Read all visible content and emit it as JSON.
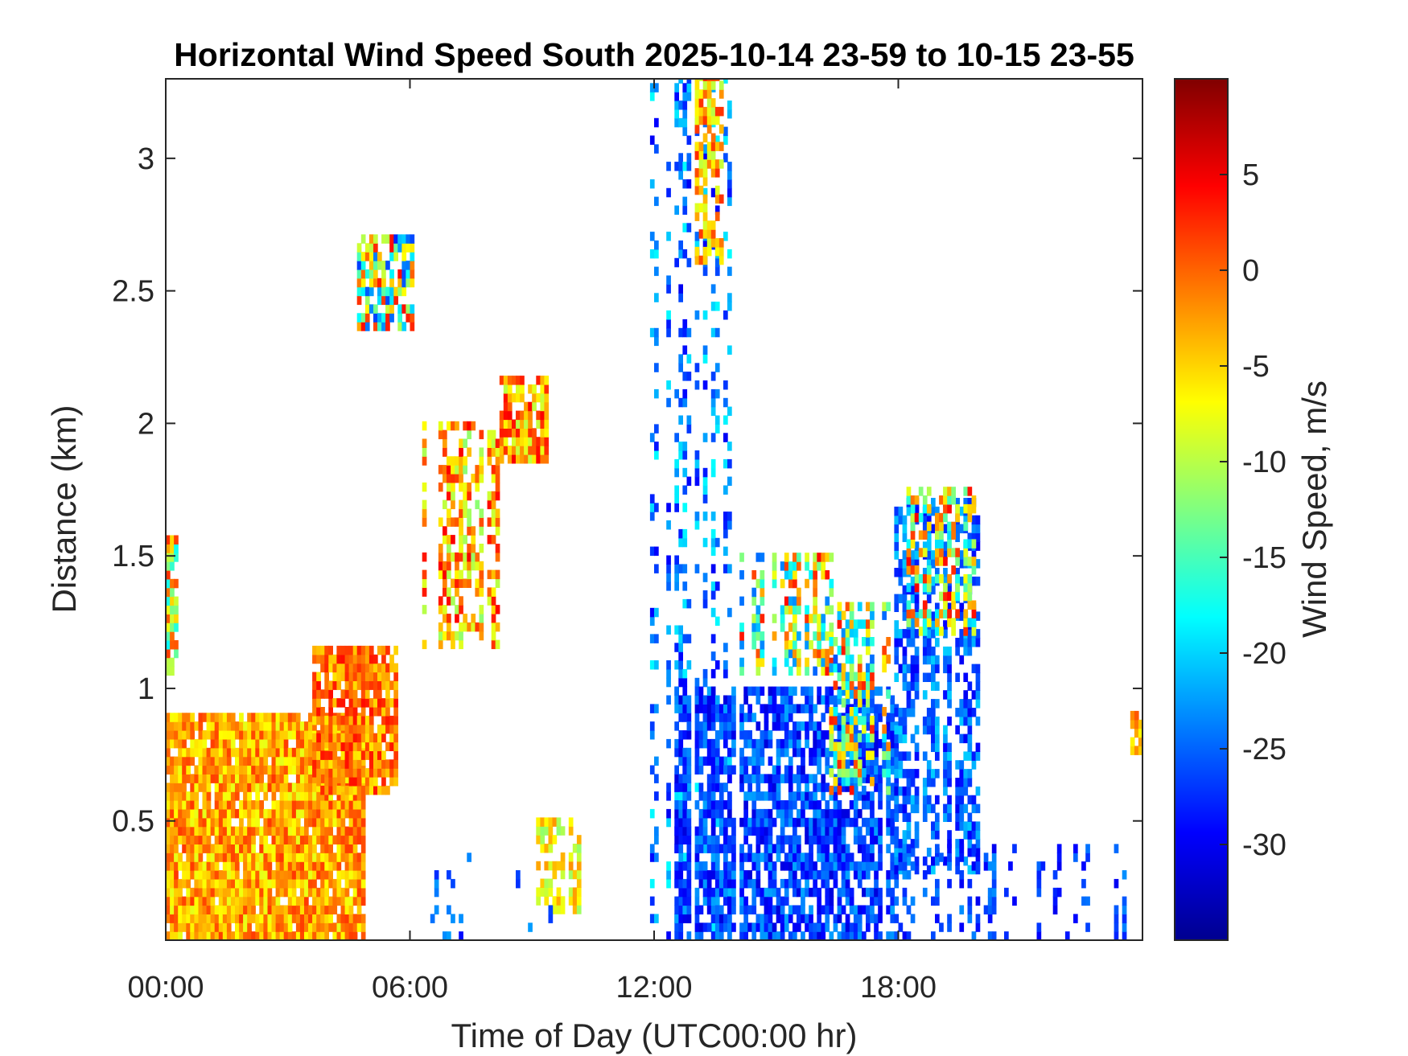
{
  "chart_data": {
    "type": "heatmap",
    "title": "Horizontal Wind Speed South 2025-10-14 23-59 to 10-15 23-55",
    "xlabel": "Time of Day (UTC00:00 hr)",
    "ylabel": "Distance (km)",
    "colorbar_label": "Wind Speed, m/s",
    "x_units": "hours",
    "xlim": [
      0,
      24
    ],
    "ylim": [
      0.05,
      3.3
    ],
    "x_ticks": [
      0,
      6,
      12,
      18
    ],
    "x_tick_labels": [
      "00:00",
      "06:00",
      "12:00",
      "18:00"
    ],
    "y_ticks": [
      0.5,
      1,
      1.5,
      2,
      2.5,
      3
    ],
    "y_tick_labels": [
      "0.5",
      "1",
      "1.5",
      "2",
      "2.5",
      "3"
    ],
    "clim": [
      -35,
      10
    ],
    "colorbar_ticks": [
      5,
      0,
      -5,
      -10,
      -15,
      -20,
      -25,
      -30
    ],
    "colorbar_tick_labels": [
      "5",
      "0",
      "-5",
      "-10",
      "-15",
      "-20",
      "-25",
      "-30"
    ],
    "colormap": "jet",
    "grid": false,
    "regions": [
      {
        "name": "low-level-jet",
        "x": [
          0.0,
          4.8
        ],
        "y": [
          0.05,
          0.9
        ],
        "values": [
          -8,
          2
        ],
        "density": 0.92
      },
      {
        "name": "rising-core-1",
        "x": [
          3.6,
          5.6
        ],
        "y": [
          0.6,
          1.15
        ],
        "values": [
          -6,
          4
        ],
        "density": 0.85
      },
      {
        "name": "left-edge",
        "x": [
          0.0,
          0.25
        ],
        "y": [
          1.05,
          1.55
        ],
        "values": [
          -18,
          3
        ],
        "density": 0.8
      },
      {
        "name": "elevated-2.5km",
        "x": [
          4.7,
          6.0
        ],
        "y": [
          2.35,
          2.7
        ],
        "values": [
          -28,
          4
        ],
        "density": 0.75
      },
      {
        "name": "midlevel-1.5km",
        "x": [
          6.3,
          8.5
        ],
        "y": [
          1.15,
          2.0
        ],
        "values": [
          -12,
          5
        ],
        "density": 0.55
      },
      {
        "name": "elevated-2km",
        "x": [
          8.2,
          9.3
        ],
        "y": [
          1.85,
          2.15
        ],
        "values": [
          -10,
          5
        ],
        "density": 0.75
      },
      {
        "name": "morning-surface",
        "x": [
          9.1,
          10.1
        ],
        "y": [
          0.15,
          0.5
        ],
        "values": [
          -12,
          -2
        ],
        "density": 0.6
      },
      {
        "name": "scattered-surface",
        "x": [
          6.0,
          9.5
        ],
        "y": [
          0.05,
          0.35
        ],
        "values": [
          -30,
          -22
        ],
        "density": 0.12
      },
      {
        "name": "afternoon-columns",
        "x": [
          11.8,
          14.0
        ],
        "y": [
          0.05,
          3.3
        ],
        "values": [
          -30,
          -18
        ],
        "density": 0.3
      },
      {
        "name": "afternoon-top",
        "x": [
          13.0,
          13.6
        ],
        "y": [
          2.6,
          3.3
        ],
        "values": [
          -10,
          3
        ],
        "density": 0.6
      },
      {
        "name": "convective-surface",
        "x": [
          12.5,
          18.0
        ],
        "y": [
          0.05,
          1.0
        ],
        "values": [
          -31,
          -22
        ],
        "density": 0.72
      },
      {
        "name": "convective-cap-1.3km",
        "x": [
          14.1,
          16.4
        ],
        "y": [
          1.05,
          1.5
        ],
        "values": [
          -25,
          4
        ],
        "density": 0.6
      },
      {
        "name": "convective-core-1km",
        "x": [
          16.3,
          17.8
        ],
        "y": [
          0.6,
          1.3
        ],
        "values": [
          -26,
          4
        ],
        "density": 0.55
      },
      {
        "name": "evening-column",
        "x": [
          17.9,
          20.0
        ],
        "y": [
          0.3,
          1.7
        ],
        "values": [
          -30,
          -20
        ],
        "density": 0.6
      },
      {
        "name": "evening-cap-1.4km",
        "x": [
          18.2,
          19.9
        ],
        "y": [
          1.2,
          1.75
        ],
        "values": [
          -20,
          5
        ],
        "density": 0.55
      },
      {
        "name": "evening-surface",
        "x": [
          18.0,
          24.0
        ],
        "y": [
          0.05,
          0.4
        ],
        "values": [
          -30,
          -23
        ],
        "density": 0.35
      },
      {
        "name": "right-edge",
        "x": [
          23.7,
          24.0
        ],
        "y": [
          0.75,
          0.9
        ],
        "values": [
          -8,
          3
        ],
        "density": 0.8
      }
    ]
  }
}
